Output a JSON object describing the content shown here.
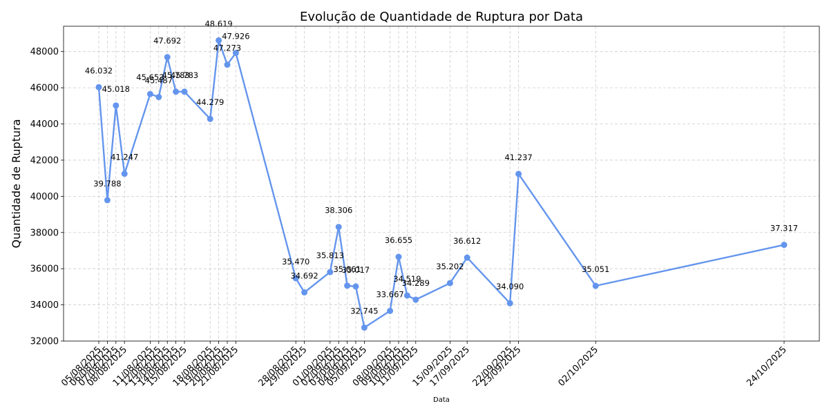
{
  "chart_data": {
    "type": "line",
    "title": "Evolução de Quantidade de Ruptura por Data",
    "xlabel": "Data",
    "ylabel": "Quantidade de Ruptura",
    "ylim": [
      32000,
      49400
    ],
    "yticks": [
      32000,
      34000,
      36000,
      38000,
      40000,
      42000,
      44000,
      46000,
      48000
    ],
    "ytick_labels": [
      "32000",
      "34000",
      "36000",
      "38000",
      "40000",
      "42000",
      "44000",
      "46000",
      "48000"
    ],
    "grid": true,
    "color": "#6495ED",
    "series": [
      {
        "x": [
          "05/08/2025",
          "06/08/2025",
          "07/08/2025",
          "08/08/2025",
          "11/08/2025",
          "12/08/2025",
          "13/08/2025",
          "14/08/2025",
          "15/08/2025",
          "18/08/2025",
          "19/08/2025",
          "20/08/2025",
          "21/08/2025",
          "28/08/2025",
          "29/08/2025",
          "01/09/2025",
          "02/09/2025",
          "03/09/2025",
          "04/09/2025",
          "05/09/2025",
          "08/09/2025",
          "09/09/2025",
          "10/09/2025",
          "11/09/2025",
          "15/09/2025",
          "17/09/2025",
          "22/09/2025",
          "23/09/2025",
          "02/10/2025",
          "24/10/2025"
        ],
        "values": [
          46032,
          39788,
          45018,
          41247,
          45653,
          45487,
          47692,
          45783,
          45783,
          44279,
          48619,
          47273,
          47926,
          35470,
          34692,
          35813,
          38306,
          35061,
          35017,
          32745,
          33667,
          36655,
          34519,
          34289,
          35202,
          36612,
          34090,
          41237,
          35051,
          37317
        ],
        "labels": [
          "46.032",
          "39.788",
          "45.018",
          "41.247",
          "45.653",
          "45.487",
          "47.692",
          "45.783",
          "45.783",
          "44.279",
          "48.619",
          "47.273",
          "47.926",
          "35.470",
          "34.692",
          "35.813",
          "38.306",
          "35.061",
          "35.017",
          "32.745",
          "33.667",
          "36.655",
          "34.519",
          "34.289",
          "35.202",
          "36.612",
          "34.090",
          "41.237",
          "35.051",
          "37.317"
        ]
      }
    ]
  }
}
